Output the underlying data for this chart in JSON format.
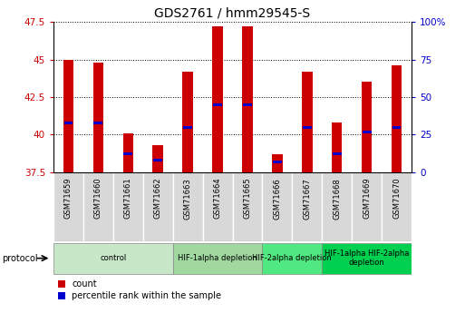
{
  "title": "GDS2761 / hmm29545-S",
  "samples": [
    "GSM71659",
    "GSM71660",
    "GSM71661",
    "GSM71662",
    "GSM71663",
    "GSM71664",
    "GSM71665",
    "GSM71666",
    "GSM71667",
    "GSM71668",
    "GSM71669",
    "GSM71670"
  ],
  "counts": [
    45.0,
    44.8,
    40.1,
    39.3,
    44.2,
    47.2,
    47.2,
    38.7,
    44.2,
    40.8,
    43.5,
    44.6
  ],
  "percentile_ranks": [
    40.8,
    40.8,
    38.7,
    38.3,
    40.5,
    42.0,
    42.0,
    38.2,
    40.5,
    38.7,
    40.2,
    40.5
  ],
  "ylim_left": [
    37.5,
    47.5
  ],
  "ylim_right": [
    0,
    100
  ],
  "yticks_left": [
    37.5,
    40.0,
    42.5,
    45.0,
    47.5
  ],
  "ytick_labels_left": [
    "37.5",
    "40",
    "42.5",
    "45",
    "47.5"
  ],
  "yticks_right": [
    0,
    25,
    50,
    75,
    100
  ],
  "ytick_labels_right": [
    "0",
    "25",
    "50",
    "75",
    "100%"
  ],
  "protocol_groups": [
    {
      "label": "control",
      "start": 0,
      "end": 3,
      "color": "#c8e6c8"
    },
    {
      "label": "HIF-1alpha depletion",
      "start": 4,
      "end": 6,
      "color": "#a0d8a0"
    },
    {
      "label": "HIF-2alpha depletion",
      "start": 7,
      "end": 8,
      "color": "#50e880"
    },
    {
      "label": "HIF-1alpha HIF-2alpha\ndepletion",
      "start": 9,
      "end": 11,
      "color": "#00d050"
    }
  ],
  "bar_color": "#cc0000",
  "percentile_color": "#0000cc",
  "bar_width": 0.35,
  "tick_label_color_left": "#cc0000",
  "tick_label_color_right": "#0000cc",
  "title_fontsize": 10
}
